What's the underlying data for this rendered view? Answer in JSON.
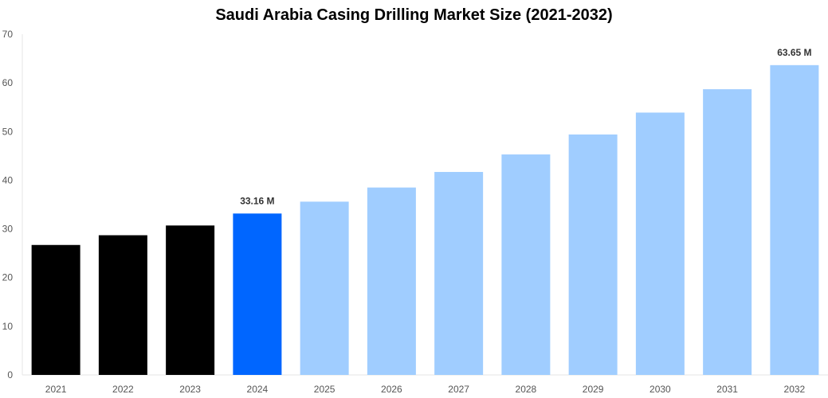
{
  "chart_data": {
    "type": "bar",
    "title": "Saudi Arabia Casing Drilling Market Size (2021-2032)",
    "categories": [
      "2021",
      "2022",
      "2023",
      "2024",
      "2025",
      "2026",
      "2027",
      "2028",
      "2029",
      "2030",
      "2031",
      "2032"
    ],
    "values": [
      26.7,
      28.7,
      30.7,
      33.16,
      35.6,
      38.5,
      41.7,
      45.3,
      49.4,
      53.9,
      58.7,
      63.65
    ],
    "bar_colors": [
      "#000000",
      "#000000",
      "#000000",
      "#0066ff",
      "#a0cdff",
      "#a0cdff",
      "#a0cdff",
      "#a0cdff",
      "#a0cdff",
      "#a0cdff",
      "#a0cdff",
      "#a0cdff"
    ],
    "data_labels": [
      {
        "index": 3,
        "text": "33.16 M"
      },
      {
        "index": 11,
        "text": "63.65 M"
      }
    ],
    "xlabel": "",
    "ylabel": "",
    "ylim": [
      0,
      70
    ],
    "yticks": [
      "0",
      "10",
      "20",
      "30",
      "40",
      "50",
      "60",
      "70"
    ],
    "grid": false,
    "legend": "none"
  }
}
